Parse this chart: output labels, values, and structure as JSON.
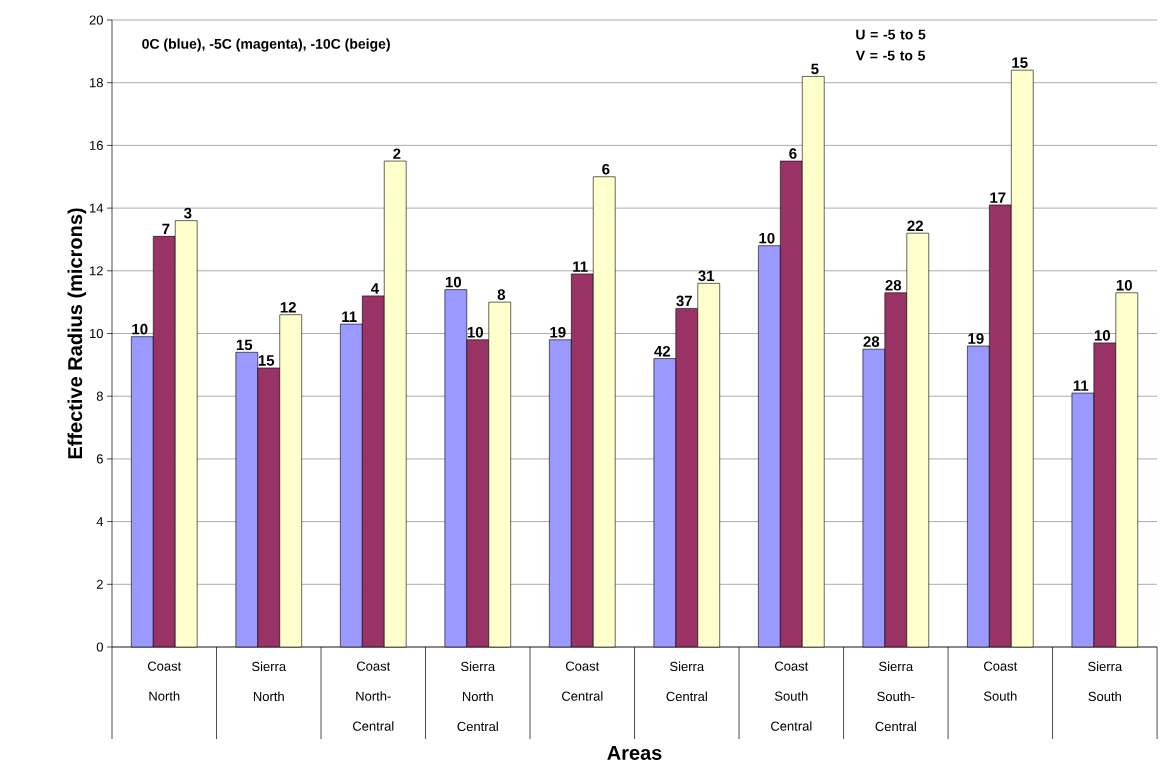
{
  "chart_data": {
    "type": "bar",
    "xlabel": "Areas",
    "ylabel": "Effective Radius (microns)",
    "categories": [
      "Coast North",
      "Sierra North",
      "Coast North-Central",
      "Sierra North Central",
      "Coast Central",
      "Sierra Central",
      "Coast South Central",
      "Sierra South-Central",
      "Coast South",
      "Sierra South"
    ],
    "series": [
      {
        "color": "#9999ff",
        "values": [
          9.9,
          9.4,
          10.3,
          11.4,
          9.8,
          9.2,
          12.8,
          9.5,
          9.6,
          8.1
        ]
      },
      {
        "color": "#993366",
        "values": [
          13.1,
          8.9,
          11.2,
          9.8,
          11.9,
          10.8,
          15.5,
          11.3,
          14.1,
          9.7
        ]
      },
      {
        "color": "#ffffcc",
        "values": [
          13.6,
          10.6,
          15.5,
          11.0,
          15.0,
          11.6,
          18.2,
          13.2,
          18.4,
          11.3
        ]
      }
    ],
    "ylim": [
      0,
      20
    ],
    "yticks": [
      0,
      2,
      4,
      6,
      8,
      10,
      12,
      14,
      16,
      18,
      20
    ],
    "grid": "y",
    "annotations": [
      "0C (blue), -5C (magenta), -10C (beige)",
      "U = -5 to 5 V = -5 to 5",
      "10",
      "15",
      "11",
      "10",
      "19",
      "42",
      "10",
      "28",
      "19",
      "11",
      "7",
      "15",
      "4",
      "10",
      "11",
      "37",
      "6",
      "28",
      "17",
      "10",
      "3",
      "12",
      "2",
      "8",
      "6",
      "31",
      "5",
      "22",
      "15",
      "10"
    ]
  }
}
